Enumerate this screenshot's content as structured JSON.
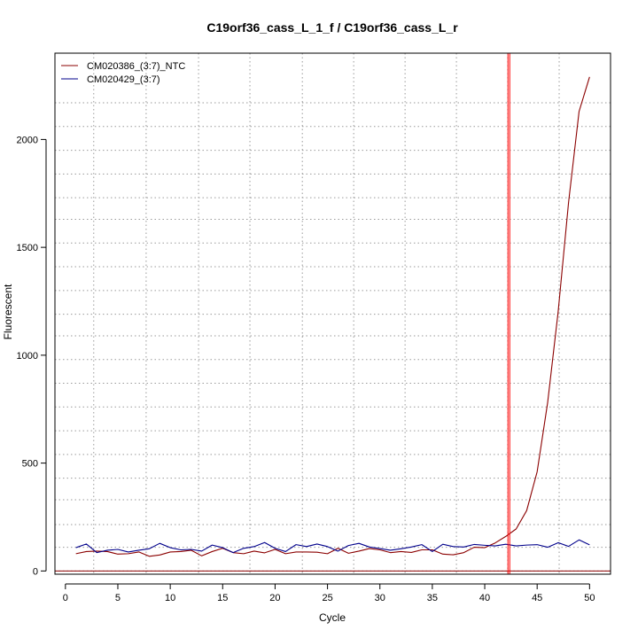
{
  "chart_data": {
    "type": "line",
    "title": "C19orf36_cass_L_1_f / C19orf36_cass_L_r",
    "xlabel": "Cycle",
    "ylabel": "Fluorescent",
    "xlim": [
      -1.0,
      52.0
    ],
    "ylim": [
      -15,
      2400
    ],
    "xticks": [
      0,
      5,
      10,
      15,
      20,
      25,
      30,
      35,
      40,
      45,
      50
    ],
    "yticks": [
      0,
      500,
      1000,
      1500,
      2000
    ],
    "grid": true,
    "x_grid_positions": [
      2.7,
      7.7,
      12.7,
      17.6,
      22.6,
      27.5,
      32.4,
      37.3,
      42.2,
      47.1
    ],
    "y_grid_positions": [
      0,
      110,
      215,
      330,
      430,
      540,
      650,
      760,
      870,
      980,
      1090,
      1190,
      1300,
      1410,
      1520,
      1630,
      1730,
      1840,
      1950,
      2060,
      2170
    ],
    "threshold": {
      "x": 42.3,
      "color": "#ff0000"
    },
    "baseline": {
      "y": 0,
      "color": "#8b0000"
    },
    "legend_position": "top-left",
    "series": [
      {
        "name": "CM020386_(3:7)_NTC",
        "color": "#8b0000",
        "x": [
          1,
          2,
          3,
          4,
          5,
          6,
          7,
          8,
          9,
          10,
          11,
          12,
          13,
          14,
          15,
          16,
          17,
          18,
          19,
          20,
          21,
          22,
          23,
          24,
          25,
          26,
          27,
          28,
          29,
          30,
          31,
          32,
          33,
          34,
          35,
          36,
          37,
          38,
          39,
          40,
          41,
          42,
          43,
          44,
          45,
          46,
          47,
          48,
          49,
          50
        ],
        "values": [
          80,
          90,
          92,
          90,
          78,
          80,
          88,
          68,
          74,
          88,
          90,
          96,
          70,
          90,
          105,
          85,
          80,
          92,
          84,
          100,
          80,
          88,
          88,
          87,
          80,
          105,
          82,
          92,
          104,
          98,
          85,
          90,
          86,
          98,
          98,
          78,
          75,
          85,
          110,
          108,
          130,
          160,
          195,
          280,
          460,
          780,
          1200,
          1710,
          2130,
          2290
        ]
      },
      {
        "name": "CM020429_(3:7)",
        "color": "#00008b",
        "x": [
          1,
          2,
          3,
          4,
          5,
          6,
          7,
          8,
          9,
          10,
          11,
          12,
          13,
          14,
          15,
          16,
          17,
          18,
          19,
          20,
          21,
          22,
          23,
          24,
          25,
          26,
          27,
          28,
          29,
          30,
          31,
          32,
          33,
          34,
          35,
          36,
          37,
          38,
          39,
          40,
          41,
          42,
          43,
          44,
          45,
          46,
          47,
          48,
          49,
          50
        ],
        "values": [
          108,
          125,
          85,
          96,
          100,
          88,
          96,
          103,
          128,
          108,
          98,
          100,
          92,
          120,
          108,
          85,
          105,
          113,
          132,
          105,
          90,
          122,
          113,
          125,
          113,
          92,
          118,
          128,
          111,
          104,
          96,
          103,
          111,
          122,
          90,
          124,
          113,
          111,
          123,
          119,
          116,
          124,
          116,
          120,
          122,
          110,
          131,
          114,
          144,
          121
        ]
      }
    ]
  }
}
